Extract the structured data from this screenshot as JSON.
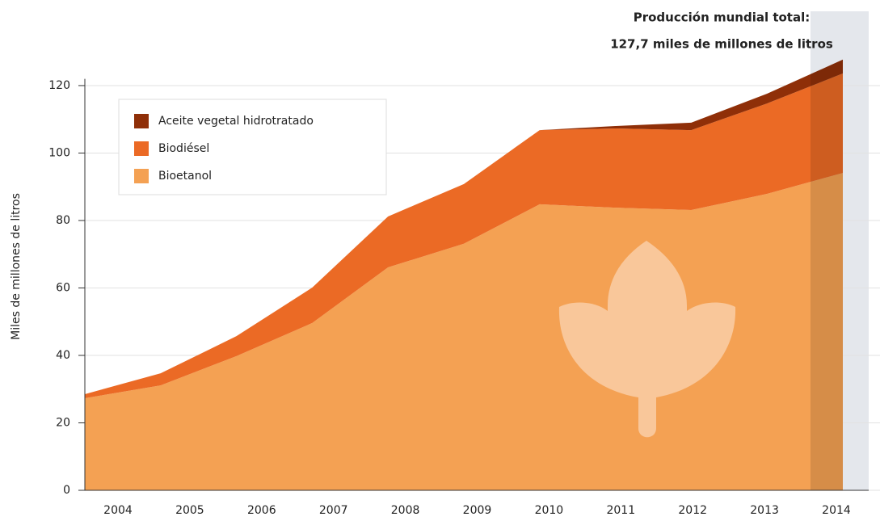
{
  "chart_data": {
    "type": "stacked_area",
    "annotation": [
      "Producción mundial total:",
      "127,7 miles de millones de litros"
    ],
    "y_label": "Miles de millones de litros",
    "categories": [
      "2004",
      "2005",
      "2006",
      "2007",
      "2008",
      "2009",
      "2010",
      "2011",
      "2012",
      "2013",
      "2014"
    ],
    "series": [
      {
        "name": "Bioetanol",
        "color": "#f4a153",
        "values": [
          27.3,
          31.1,
          39.8,
          49.6,
          66.1,
          73.1,
          84.8,
          83.8,
          83.1,
          87.9,
          94.1
        ]
      },
      {
        "name": "Biodiésel",
        "color": "#eb6a25",
        "values": [
          1.2,
          3.6,
          5.9,
          10.5,
          15.1,
          17.7,
          22.0,
          23.5,
          23.7,
          26.8,
          29.5
        ]
      },
      {
        "name": "Aceite vegetal hidrotratado",
        "color": "#8f2f08",
        "values": [
          0,
          0,
          0,
          0,
          0,
          0,
          0,
          0.7,
          2.2,
          2.9,
          4.1
        ]
      }
    ],
    "ylim": [
      0,
      122
    ],
    "yticks": [
      0,
      20,
      40,
      60,
      80,
      100,
      120
    ],
    "grid": true
  }
}
